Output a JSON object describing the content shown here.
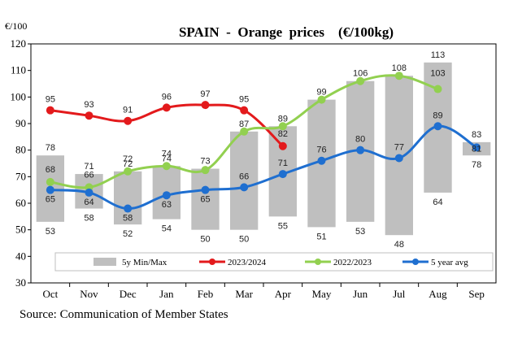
{
  "chart_data": {
    "type": "bar+line",
    "title": "SPAIN  -  Orange  prices    (€/100kg)",
    "y_unit_label": "€/100",
    "ylim": [
      30,
      120
    ],
    "y_ticks": [
      30,
      40,
      50,
      60,
      70,
      80,
      90,
      100,
      110,
      120
    ],
    "grid": false,
    "categories": [
      "Oct",
      "Nov",
      "Dec",
      "Jan",
      "Feb",
      "Mar",
      "Apr",
      "May",
      "Jun",
      "Jul",
      "Aug",
      "Sep"
    ],
    "range_series": {
      "name": "5y Min/Max",
      "color": "#bfbfbf",
      "min": [
        53,
        58,
        52,
        54,
        50,
        50,
        55,
        51,
        53,
        48,
        64,
        78
      ],
      "max": [
        78,
        71,
        72,
        74,
        73,
        87,
        89,
        99,
        106,
        108,
        113,
        83
      ],
      "min_labels": [
        "53",
        "58",
        "52",
        "54",
        "50",
        "50",
        "55",
        "51",
        "53",
        "48",
        "64",
        "78"
      ],
      "max_labels": [
        "78",
        "71",
        "72",
        "74",
        "73",
        "87",
        "89",
        "99",
        "106",
        "108",
        "113",
        "83"
      ]
    },
    "series": [
      {
        "name": "2023/2024",
        "color": "#e31a1c",
        "values": [
          95,
          93,
          91,
          96,
          97,
          95,
          81.5,
          null,
          null,
          null,
          null,
          null
        ],
        "labels": [
          "95",
          "93",
          "91",
          "96",
          "97",
          "95",
          "82",
          "",
          "",
          "",
          "",
          ""
        ]
      },
      {
        "name": "2022/2023",
        "color": "#92d050",
        "values": [
          68,
          66,
          72,
          74,
          72.5,
          87,
          89,
          99,
          106,
          108,
          103,
          null
        ],
        "labels": [
          "68",
          "66",
          "72",
          "74",
          "",
          "",
          "",
          "",
          "",
          "",
          "103",
          ""
        ]
      },
      {
        "name": "5 year avg",
        "color": "#1f6fd0",
        "values": [
          65,
          64,
          58,
          63,
          65,
          66,
          71,
          76,
          80,
          77,
          89,
          81
        ],
        "labels": [
          "65",
          "64",
          "58",
          "63",
          "65",
          "66",
          "71",
          "76",
          "80",
          "77",
          "89",
          "81"
        ]
      }
    ],
    "legend_position": "bottom-inside"
  },
  "source": "Source: Communication of Member States"
}
